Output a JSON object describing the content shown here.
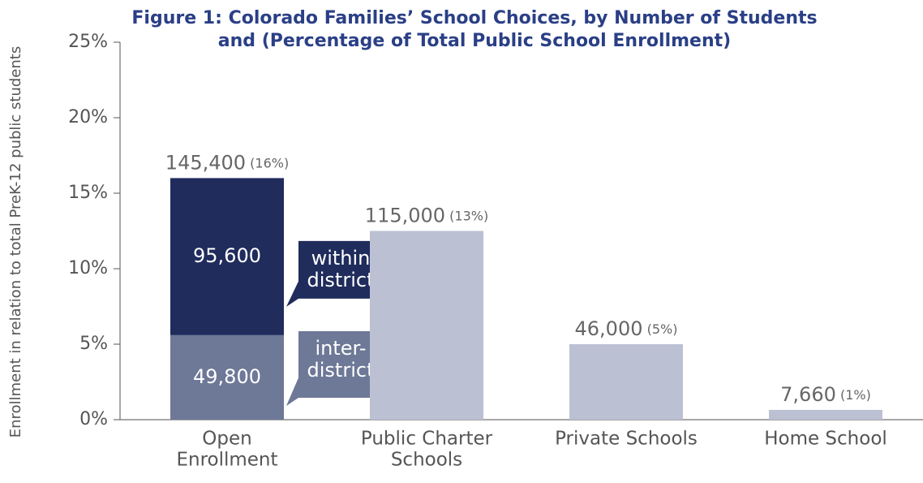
{
  "chart_data": {
    "type": "bar",
    "title": [
      "Figure 1: Colorado Families’ School Choices, by Number of Students",
      "and (Percentage of Total Public School Enrollment)"
    ],
    "y_label": "Enrollment in relation to total PreK-12 public students",
    "categories": [
      [
        "Open",
        "Enrollment"
      ],
      [
        "Public Charter",
        "Schools"
      ],
      [
        "Private Schools"
      ],
      [
        "Home School"
      ]
    ],
    "series": [
      {
        "name": [
          "inter-",
          "district"
        ],
        "color": "#6e7897",
        "values": [
          5.6,
          null,
          null,
          null
        ],
        "value_labels": [
          "49,800",
          null,
          null,
          null
        ]
      },
      {
        "name": [
          "within",
          "district"
        ],
        "color": "#1f2c5c",
        "values": [
          10.4,
          null,
          null,
          null
        ],
        "value_labels": [
          "95,600",
          null,
          null,
          null
        ]
      },
      {
        "color": "#bcc0d3",
        "values": [
          null,
          12.5,
          5,
          0.65
        ]
      }
    ],
    "bar_labels": [
      {
        "count": "145,400",
        "share": "(16%)"
      },
      {
        "count": "115,000",
        "share": "(13%)"
      },
      {
        "count": "46,000",
        "share": "(5%)"
      },
      {
        "count": "7,660",
        "share": "(1%)"
      }
    ],
    "ylim": [
      0,
      25
    ],
    "yticks": [
      {
        "value": 0,
        "label": "0%"
      },
      {
        "value": 5,
        "label": "5%"
      },
      {
        "value": 10,
        "label": "10%"
      },
      {
        "value": 15,
        "label": "15%"
      },
      {
        "value": 20,
        "label": "20%"
      },
      {
        "value": 25,
        "label": "25%"
      }
    ]
  }
}
